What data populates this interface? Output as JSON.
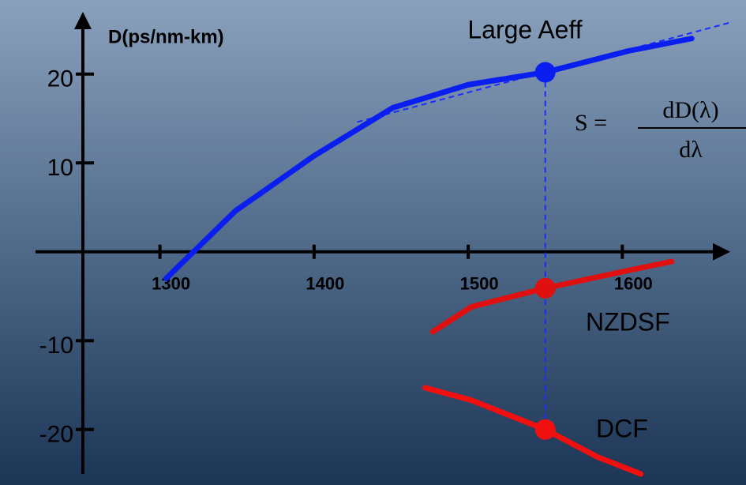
{
  "chart_data": {
    "type": "line",
    "y_label": "D(ps/nm-km)",
    "xlim": [
      1250,
      1670
    ],
    "ylim": [
      -25,
      27
    ],
    "xticks": [
      1300,
      1400,
      1500,
      1600
    ],
    "yticks": [
      -20,
      -10,
      10,
      20
    ],
    "highlight_x": 1550,
    "series": [
      {
        "name": "Large Aeff",
        "color": "#0a1ef0",
        "x": [
          1304,
          1349,
          1400,
          1451,
          1500,
          1550,
          1604,
          1645
        ],
        "values": [
          -3,
          4.6,
          10.8,
          16.2,
          18.8,
          20.2,
          22.6,
          24
        ]
      },
      {
        "name": "NZDSF",
        "color": "#e01010",
        "x": [
          1477,
          1502,
          1550,
          1604,
          1632
        ],
        "values": [
          -9,
          -6.2,
          -4.1,
          -2.1,
          -1.1
        ]
      },
      {
        "name": "DCF",
        "color": "#f01010",
        "x": [
          1472,
          1502,
          1550,
          1584,
          1612
        ],
        "values": [
          -15.3,
          -16.7,
          -20,
          -23.1,
          -25
        ]
      }
    ],
    "tangent": {
      "x": [
        1428,
        1670
      ],
      "values": [
        14.6,
        25.8
      ]
    },
    "formula": {
      "lhs": "S =",
      "numerator": "dD(λ)",
      "denominator": "dλ"
    }
  }
}
